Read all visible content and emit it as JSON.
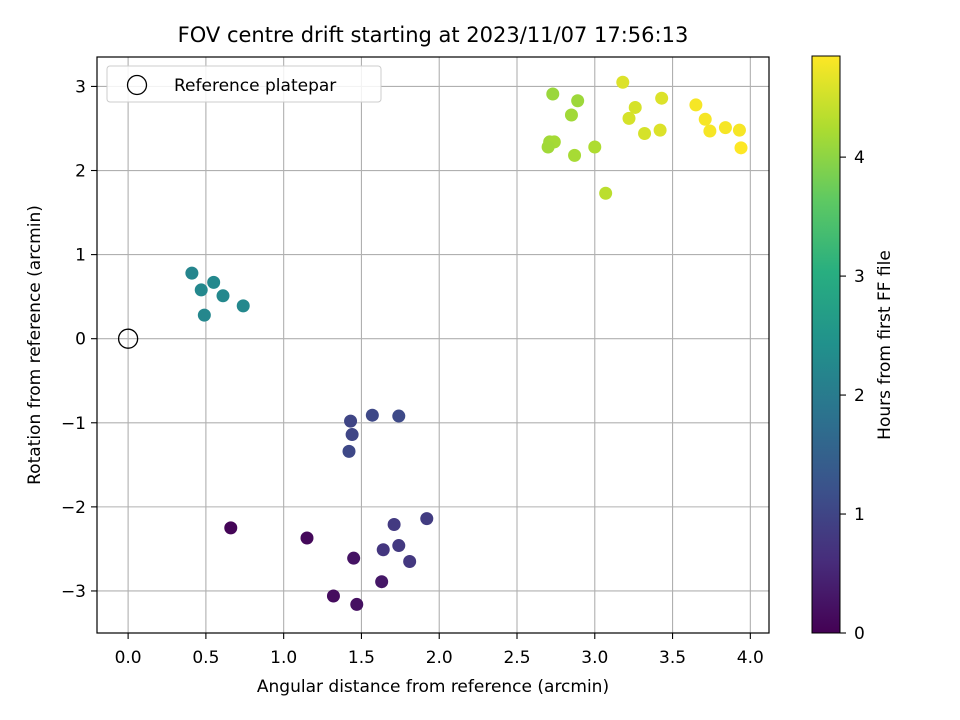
{
  "chart_data": {
    "type": "scatter",
    "title": "FOV centre drift starting at 2023/11/07 17:56:13",
    "xlabel": "Angular distance from reference (arcmin)",
    "ylabel": "Rotation from reference (arcmin)",
    "xlim": [
      -0.2,
      4.12
    ],
    "ylim": [
      -3.5,
      3.35
    ],
    "xticks": [
      0.0,
      0.5,
      1.0,
      1.5,
      2.0,
      2.5,
      3.0,
      3.5,
      4.0
    ],
    "xtick_labels": [
      "0.0",
      "0.5",
      "1.0",
      "1.5",
      "2.0",
      "2.5",
      "3.0",
      "3.5",
      "4.0"
    ],
    "yticks": [
      -3,
      -2,
      -1,
      0,
      1,
      2,
      3
    ],
    "ytick_labels": [
      "−3",
      "−2",
      "−1",
      "0",
      "1",
      "2",
      "3"
    ],
    "grid": true,
    "legend": {
      "position": "top-left",
      "entries": [
        "Reference platepar"
      ]
    },
    "reference": {
      "x": 0.0,
      "y": 0.0,
      "label": "Reference platepar"
    },
    "colorbar": {
      "label": "Hours from first FF file",
      "range": [
        0,
        4.85
      ],
      "ticks": [
        0,
        1,
        2,
        3,
        4
      ],
      "tick_labels": [
        "0",
        "1",
        "2",
        "3",
        "4"
      ],
      "colormap": "viridis"
    },
    "points": [
      {
        "x": 0.66,
        "y": -2.25,
        "c": 0.05
      },
      {
        "x": 1.15,
        "y": -2.37,
        "c": 0.1
      },
      {
        "x": 1.32,
        "y": -3.06,
        "c": 0.15
      },
      {
        "x": 1.47,
        "y": -3.16,
        "c": 0.2
      },
      {
        "x": 1.45,
        "y": -2.61,
        "c": 0.25
      },
      {
        "x": 1.63,
        "y": -2.89,
        "c": 0.3
      },
      {
        "x": 1.64,
        "y": -2.51,
        "c": 0.75
      },
      {
        "x": 1.74,
        "y": -2.46,
        "c": 0.8
      },
      {
        "x": 1.81,
        "y": -2.65,
        "c": 0.78
      },
      {
        "x": 1.71,
        "y": -2.21,
        "c": 0.82
      },
      {
        "x": 1.92,
        "y": -2.14,
        "c": 0.85
      },
      {
        "x": 1.43,
        "y": -0.98,
        "c": 1.0
      },
      {
        "x": 1.44,
        "y": -1.14,
        "c": 1.02
      },
      {
        "x": 1.42,
        "y": -1.34,
        "c": 1.05
      },
      {
        "x": 1.57,
        "y": -0.91,
        "c": 1.05
      },
      {
        "x": 1.74,
        "y": -0.92,
        "c": 1.08
      },
      {
        "x": 0.41,
        "y": 0.78,
        "c": 2.2
      },
      {
        "x": 0.47,
        "y": 0.58,
        "c": 2.25
      },
      {
        "x": 0.55,
        "y": 0.67,
        "c": 2.25
      },
      {
        "x": 0.61,
        "y": 0.51,
        "c": 2.25
      },
      {
        "x": 0.49,
        "y": 0.28,
        "c": 2.22
      },
      {
        "x": 0.74,
        "y": 0.39,
        "c": 2.25
      },
      {
        "x": 2.73,
        "y": 2.91,
        "c": 4.1
      },
      {
        "x": 2.89,
        "y": 2.83,
        "c": 4.12
      },
      {
        "x": 2.85,
        "y": 2.66,
        "c": 4.15
      },
      {
        "x": 2.71,
        "y": 2.34,
        "c": 4.15
      },
      {
        "x": 2.74,
        "y": 2.34,
        "c": 4.18
      },
      {
        "x": 2.7,
        "y": 2.28,
        "c": 4.15
      },
      {
        "x": 2.87,
        "y": 2.18,
        "c": 4.2
      },
      {
        "x": 3.0,
        "y": 2.28,
        "c": 4.25
      },
      {
        "x": 3.07,
        "y": 1.73,
        "c": 4.35
      },
      {
        "x": 3.18,
        "y": 3.05,
        "c": 4.6
      },
      {
        "x": 3.26,
        "y": 2.75,
        "c": 4.55
      },
      {
        "x": 3.22,
        "y": 2.62,
        "c": 4.55
      },
      {
        "x": 3.32,
        "y": 2.44,
        "c": 4.55
      },
      {
        "x": 3.43,
        "y": 2.86,
        "c": 4.6
      },
      {
        "x": 3.42,
        "y": 2.48,
        "c": 4.6
      },
      {
        "x": 3.65,
        "y": 2.78,
        "c": 4.8
      },
      {
        "x": 3.71,
        "y": 2.61,
        "c": 4.8
      },
      {
        "x": 3.74,
        "y": 2.47,
        "c": 4.8
      },
      {
        "x": 3.84,
        "y": 2.51,
        "c": 4.8
      },
      {
        "x": 3.93,
        "y": 2.48,
        "c": 4.8
      },
      {
        "x": 3.94,
        "y": 2.27,
        "c": 4.85
      }
    ]
  }
}
